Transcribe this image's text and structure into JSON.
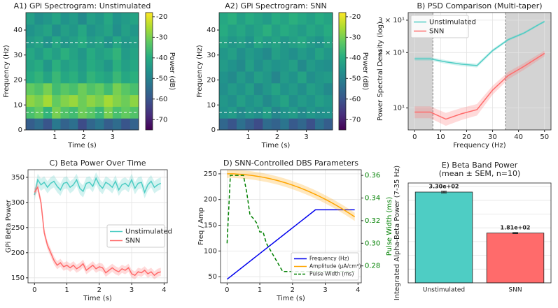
{
  "chart_data": [
    {
      "type": "heatmap",
      "title": "A1) GPi Spectrogram: Unstimulated",
      "x_label": "Time (s)",
      "y_label": "Frequency (Hz)",
      "colorbar_label": "Power (dB)",
      "xlim": [
        0,
        3.9
      ],
      "ylim": [
        0,
        47
      ],
      "xticks": [
        1,
        2,
        3
      ],
      "yticks": [
        0,
        10,
        20,
        30,
        40
      ],
      "clim": [
        -75,
        -18
      ],
      "cticks": [
        -20,
        -30,
        -40,
        -50,
        -60,
        -70
      ],
      "hlines": [
        7,
        35
      ],
      "z": [
        [
          -58,
          -55,
          -60,
          -52,
          -57,
          -54,
          -62,
          -56,
          -53,
          -58,
          -55,
          -60,
          -57
        ],
        [
          -35,
          -32,
          -38,
          -30,
          -34,
          -36,
          -31,
          -33,
          -37,
          -30,
          -35,
          -32,
          -34
        ],
        [
          -28,
          -30,
          -26,
          -32,
          -29,
          -27,
          -31,
          -28,
          -30,
          -26,
          -29,
          -31,
          -28
        ],
        [
          -32,
          -34,
          -30,
          -36,
          -33,
          -35,
          -31,
          -34,
          -32,
          -36,
          -30,
          -33,
          -35
        ],
        [
          -40,
          -38,
          -42,
          -37,
          -41,
          -39,
          -43,
          -38,
          -40,
          -42,
          -37,
          -41,
          -39
        ],
        [
          -42,
          -40,
          -45,
          -39,
          -43,
          -41,
          -44,
          -40,
          -42,
          -45,
          -39,
          -43,
          -41
        ],
        [
          -41,
          -44,
          -40,
          -43,
          -39,
          -42,
          -45,
          -40,
          -43,
          -41,
          -38,
          -44,
          -42
        ],
        [
          -44,
          -42,
          -46,
          -41,
          -45,
          -43,
          -40,
          -44,
          -42,
          -46,
          -41,
          -45,
          -43
        ],
        [
          -46,
          -44,
          -42,
          -47,
          -43,
          -45,
          -41,
          -46,
          -44,
          -42,
          -47,
          -43,
          -45
        ],
        [
          -43,
          -47,
          -45,
          -42,
          -46,
          -44,
          -48,
          -43,
          -45,
          -41,
          -46,
          -44,
          -42
        ]
      ]
    },
    {
      "type": "heatmap",
      "title": "A2) GPi Spectrogram: SNN",
      "x_label": "Time (s)",
      "y_label": "Frequency (Hz)",
      "colorbar_label": "Power (dB)",
      "xlim": [
        0,
        3.9
      ],
      "ylim": [
        0,
        47
      ],
      "xticks": [
        1,
        2,
        3
      ],
      "yticks": [
        0,
        10,
        20,
        30,
        40
      ],
      "clim": [
        -75,
        -18
      ],
      "cticks": [
        -20,
        -30,
        -40,
        -50,
        -60,
        -70
      ],
      "hlines": [
        7,
        35
      ],
      "z": [
        [
          -56,
          -60,
          -54,
          -58,
          -62,
          -55,
          -57,
          -53,
          -59,
          -56,
          -61,
          -54,
          -58
        ],
        [
          -46,
          -44,
          -48,
          -45,
          -47,
          -43,
          -49,
          -46,
          -44,
          -48,
          -45,
          -47,
          -46
        ],
        [
          -45,
          -47,
          -43,
          -46,
          -44,
          -48,
          -45,
          -42,
          -47,
          -44,
          -46,
          -43,
          -45
        ],
        [
          -47,
          -44,
          -46,
          -43,
          -48,
          -45,
          -42,
          -46,
          -44,
          -47,
          -43,
          -45,
          -48
        ],
        [
          -46,
          -48,
          -44,
          -47,
          -43,
          -45,
          -49,
          -44,
          -46,
          -42,
          -47,
          -45,
          -44
        ],
        [
          -44,
          -46,
          -48,
          -43,
          -47,
          -44,
          -46,
          -45,
          -43,
          -48,
          -44,
          -46,
          -47
        ],
        [
          -45,
          -43,
          -47,
          -44,
          -46,
          -48,
          -43,
          -45,
          -47,
          -44,
          -46,
          -42,
          -45
        ],
        [
          -42,
          -45,
          -43,
          -46,
          -41,
          -44,
          -42,
          -45,
          -43,
          -41,
          -44,
          -46,
          -42
        ],
        [
          -40,
          -43,
          -41,
          -44,
          -42,
          -39,
          -43,
          -40,
          -42,
          -44,
          -41,
          -43,
          -40
        ],
        [
          -41,
          -39,
          -43,
          -40,
          -42,
          -44,
          -40,
          -42,
          -39,
          -41,
          -43,
          -40,
          -42
        ]
      ]
    },
    {
      "type": "line",
      "title": "B) PSD Comparison (Multi-taper)",
      "x_label": "Frequency (Hz)",
      "y_label": "Power Spectral Density (log)",
      "yscale": "log",
      "grid": true,
      "legend": "upper left",
      "shade_outside": [
        7,
        35
      ],
      "xlim": [
        -2.5,
        52.5
      ],
      "ylim": [
        7.6,
        33
      ],
      "xticks": [
        0,
        10,
        20,
        30,
        40,
        50
      ],
      "yticks": [
        {
          "value": 10,
          "label": "10¹"
        },
        {
          "value": 20,
          "label": "2 × 10¹"
        },
        {
          "value": 30,
          "label": "3 × 10¹"
        }
      ],
      "x": [
        0,
        6,
        12,
        18,
        24,
        30,
        36,
        42,
        48,
        50
      ],
      "series": [
        {
          "name": "Unstimulated",
          "color": "#4ecdc4",
          "spread": 0.4,
          "values": [
            18.5,
            18.5,
            17.8,
            17.3,
            17.0,
            20.5,
            23.5,
            25.5,
            28.5,
            29.5
          ]
        },
        {
          "name": "SNN",
          "color": "#ff6b6b",
          "spread": 0.7,
          "values": [
            9.5,
            9.5,
            8.7,
            9.3,
            9.8,
            12.5,
            15.0,
            16.8,
            19.0,
            19.8
          ]
        }
      ]
    },
    {
      "type": "line",
      "title": "C) Beta Power Over Time",
      "x_label": "Time (s)",
      "y_label": "GPi Beta Power",
      "grid": true,
      "legend": "center right",
      "xlim": [
        -0.2,
        4.1
      ],
      "ylim": [
        140,
        365
      ],
      "xticks": [
        0,
        1,
        2,
        3,
        4
      ],
      "yticks": [
        150,
        200,
        250,
        300,
        350
      ],
      "x": [
        0,
        0.1,
        0.2,
        0.3,
        0.4,
        0.5,
        0.6,
        0.7,
        0.8,
        0.9,
        1,
        1.1,
        1.2,
        1.3,
        1.4,
        1.5,
        1.6,
        1.7,
        1.8,
        1.9,
        2,
        2.1,
        2.2,
        2.3,
        2.4,
        2.5,
        2.6,
        2.7,
        2.8,
        2.9,
        3,
        3.1,
        3.2,
        3.3,
        3.4,
        3.5,
        3.6,
        3.7,
        3.8,
        3.9
      ],
      "series": [
        {
          "name": "Unstimulated",
          "color": "#4ecdc4",
          "spread": 12,
          "values": [
            315,
            345,
            335,
            340,
            330,
            338,
            342,
            332,
            325,
            338,
            340,
            330,
            335,
            345,
            328,
            322,
            338,
            340,
            332,
            348,
            335,
            328,
            340,
            336,
            330,
            342,
            325,
            335,
            338,
            332,
            345,
            328,
            338,
            340,
            320,
            335,
            342,
            330,
            335,
            338
          ]
        },
        {
          "name": "SNN",
          "color": "#ff6b6b",
          "spread": 8,
          "values": [
            320,
            330,
            300,
            240,
            215,
            200,
            185,
            175,
            180,
            172,
            175,
            170,
            175,
            168,
            172,
            178,
            165,
            170,
            175,
            168,
            172,
            170,
            160,
            165,
            170,
            165,
            162,
            168,
            165,
            170,
            158,
            155,
            162,
            160,
            165,
            158,
            162,
            155,
            160,
            162
          ]
        }
      ]
    },
    {
      "type": "line",
      "title": "D) SNN-Controlled DBS Parameters",
      "x_label": "Time (s)",
      "y_label": "Freq / Amp",
      "y2_label": "Pulse Width (ms)",
      "grid": true,
      "legend": "lower right",
      "xlim": [
        -0.2,
        4.1
      ],
      "ylim": [
        38,
        258
      ],
      "y2lim": [
        0.265,
        0.365
      ],
      "xticks": [
        0,
        1,
        2,
        3,
        4
      ],
      "yticks": [
        50,
        100,
        150,
        200,
        250
      ],
      "y2ticks": [
        0.28,
        {
          "value": 0.3,
          "label": "0.30"
        },
        0.32,
        0.34,
        0.36
      ],
      "x": [
        0,
        0.1,
        0.2,
        0.3,
        0.4,
        0.5,
        0.6,
        0.7,
        0.8,
        0.9,
        1,
        1.1,
        1.2,
        1.3,
        1.4,
        1.5,
        1.6,
        1.7,
        1.8,
        1.9,
        2,
        2.1,
        2.2,
        2.3,
        2.4,
        2.5,
        2.6,
        2.7,
        2.8,
        2.9,
        3,
        3.1,
        3.2,
        3.3,
        3.4,
        3.5,
        3.6,
        3.7,
        3.8,
        3.9
      ],
      "series": [
        {
          "name": "Frequency (Hz)",
          "color": "#0000ee",
          "values": [
            45,
            50,
            55,
            60,
            65,
            70,
            75,
            80,
            85,
            90,
            95,
            100,
            105,
            110,
            115,
            120,
            125,
            130,
            135,
            140,
            145,
            150,
            155,
            160,
            165,
            170,
            175,
            180,
            180,
            180,
            180,
            180,
            180,
            180,
            180,
            180,
            180,
            180,
            180,
            180
          ]
        },
        {
          "name": "Amplitude (μA/cm²)",
          "color": "#ffa500",
          "spread": 8,
          "values": [
            250,
            250,
            250,
            249.5,
            249,
            248.6,
            248,
            247.3,
            246.5,
            245.5,
            244.5,
            243.3,
            242,
            240.7,
            239.2,
            237.6,
            235.9,
            234.1,
            232.2,
            230.1,
            228,
            225.7,
            223.4,
            220.9,
            218.3,
            215.6,
            212.8,
            209.9,
            206.9,
            203.7,
            200.5,
            197.1,
            193.7,
            190.1,
            186.4,
            182.6,
            178.7,
            174.7,
            170.6,
            166.3
          ]
        },
        {
          "name": "Pulse Width (ms)",
          "color": "#008000",
          "axis": "y2",
          "dash": true,
          "values": [
            0.3,
            0.36,
            0.36,
            0.36,
            0.36,
            0.36,
            0.345,
            0.325,
            0.322,
            0.318,
            0.31,
            0.31,
            0.3,
            0.295,
            0.29,
            0.285,
            0.28,
            0.275,
            0.275,
            0.275,
            0.275,
            0.275,
            0.275,
            0.275,
            0.275,
            0.275,
            0.275,
            0.275,
            0.275,
            0.275,
            0.275,
            0.275,
            0.275,
            0.275,
            0.275,
            0.275,
            0.275,
            0.275,
            0.275,
            0.275
          ]
        }
      ]
    },
    {
      "type": "bar",
      "title": [
        "E) Beta Band Power",
        "(mean ± SEM, n=10)"
      ],
      "y_label": "Integrated Alpha-Beta Power (7-35 Hz)",
      "grid": true,
      "ylim": [
        0,
        363
      ],
      "yticks": [
        0,
        50,
        100,
        150,
        200,
        250,
        300,
        350
      ],
      "categories": [
        "Unstimulated",
        "SNN"
      ],
      "values": [
        330,
        181
      ],
      "errors": [
        3,
        2
      ],
      "value_labels": [
        "3.30e+02",
        "1.81e+02"
      ],
      "colors": [
        "#4ecdc4",
        "#ff6b6b"
      ]
    }
  ]
}
